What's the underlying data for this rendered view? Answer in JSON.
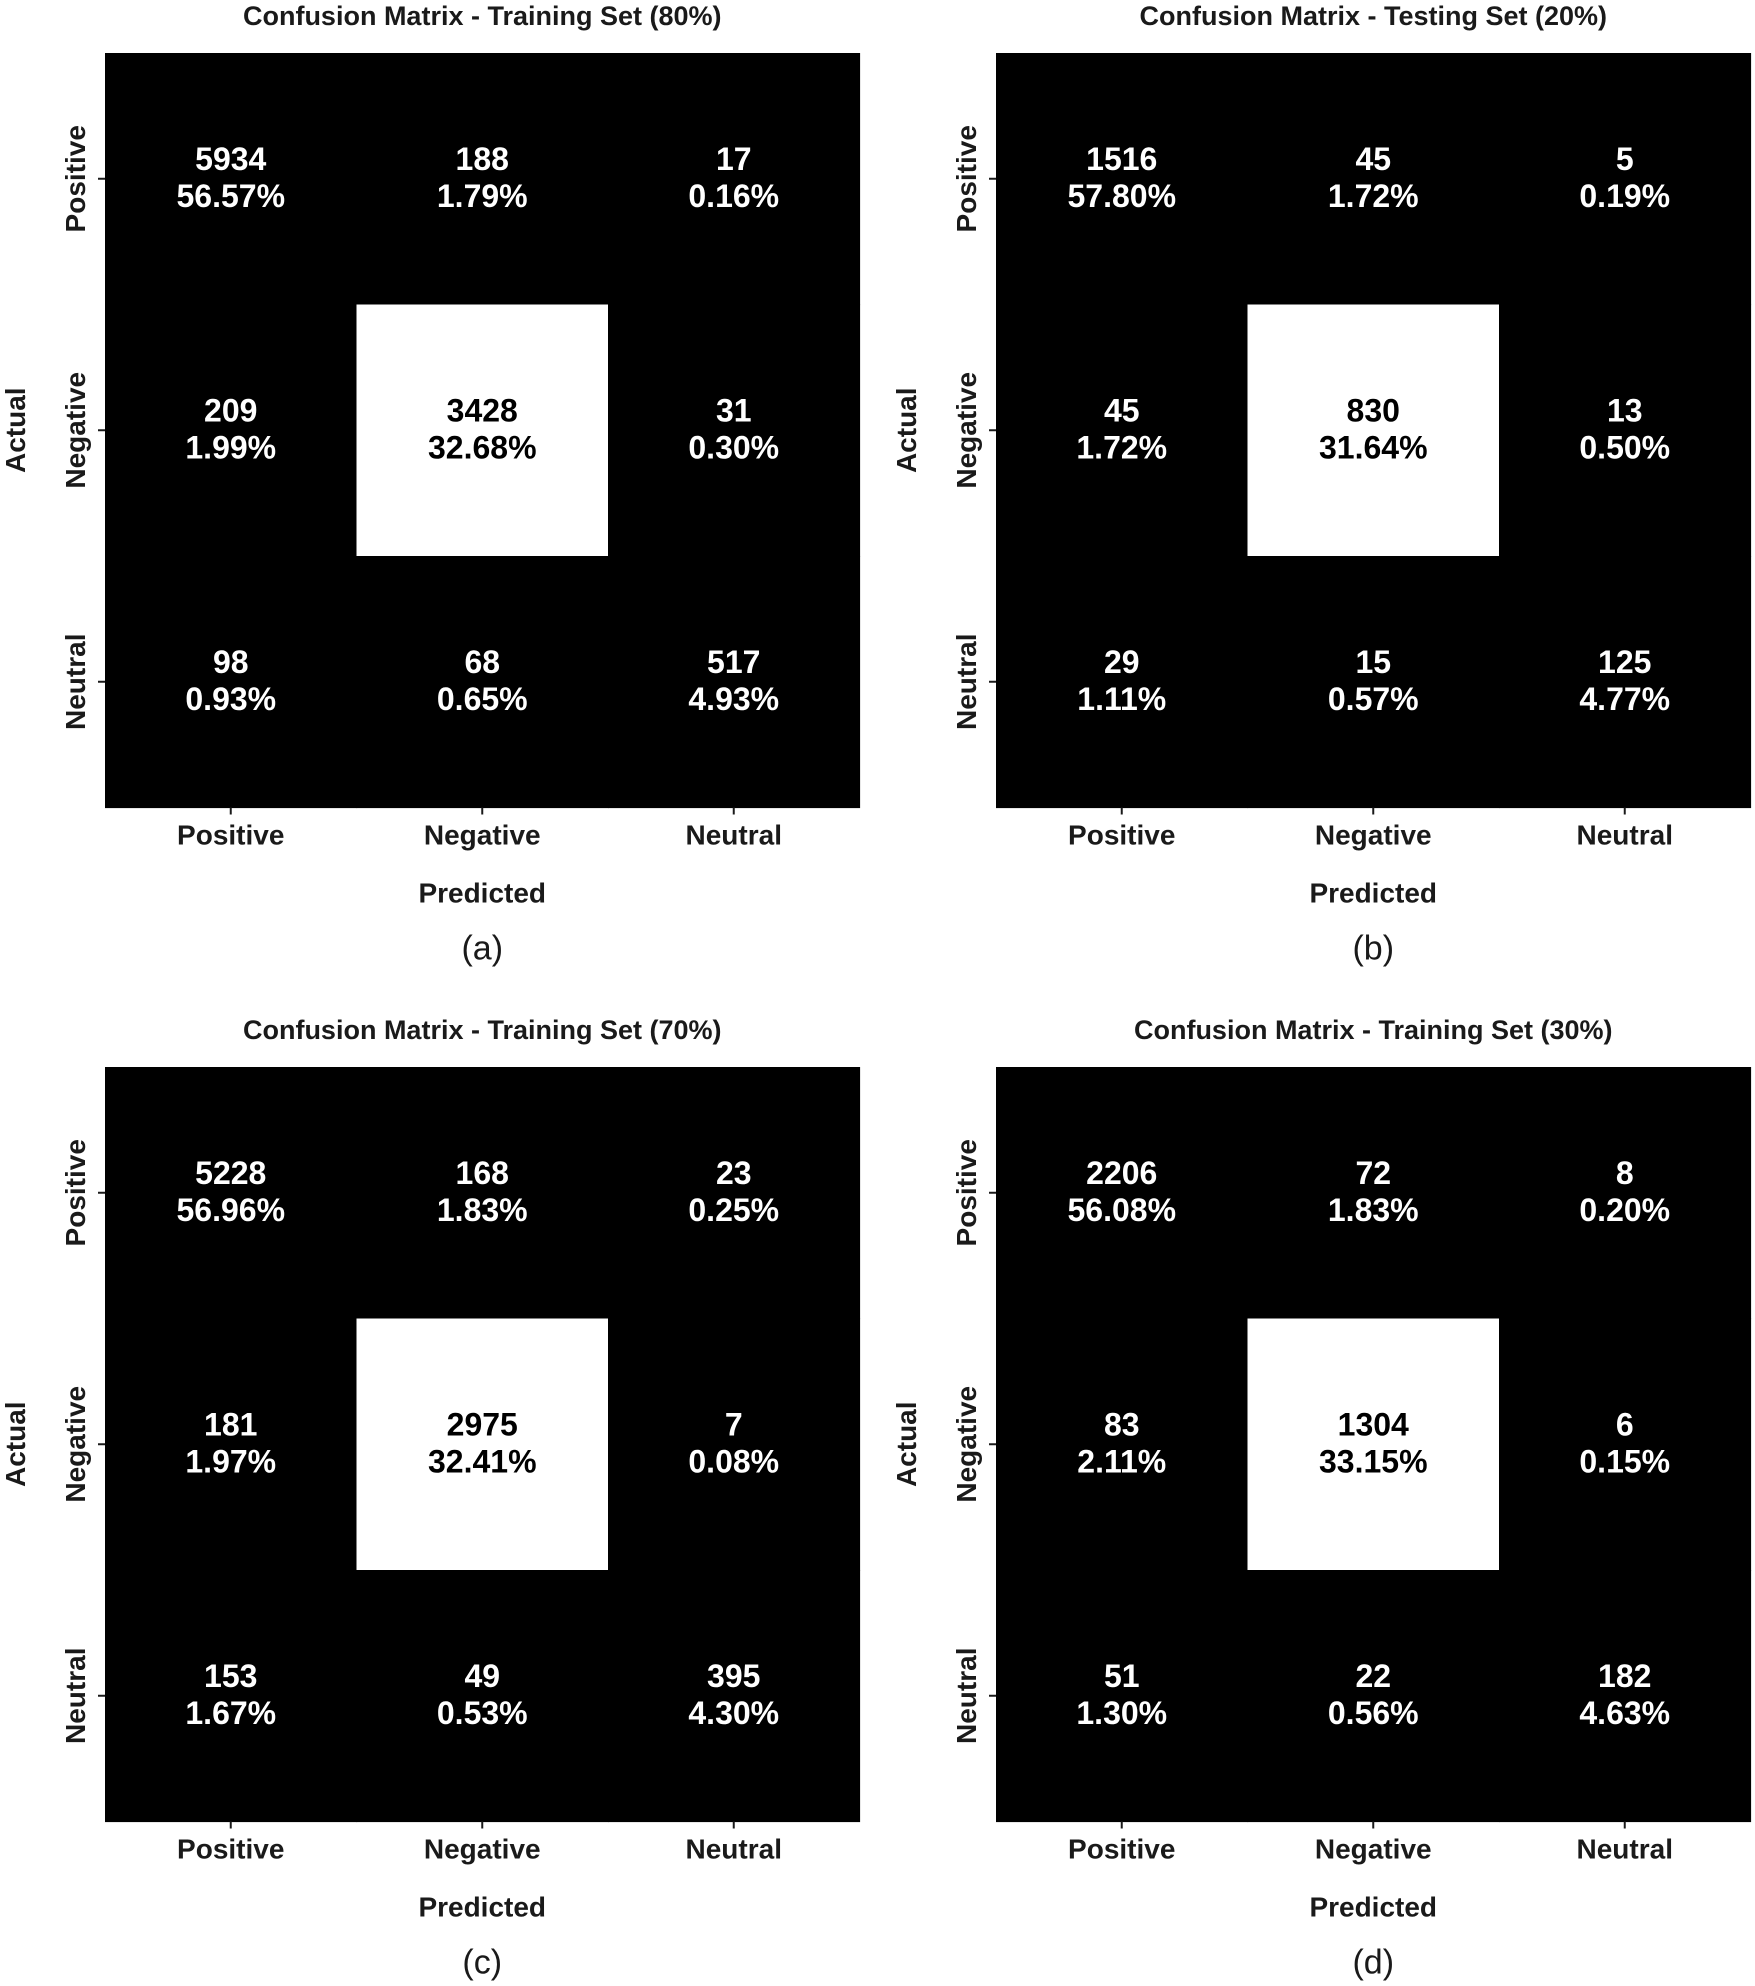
{
  "chart_data": [
    {
      "type": "heatmap",
      "title": "Confusion Matrix - Training Set (80%)",
      "caption": "(a)",
      "xlabel": "Predicted",
      "ylabel": "Actual",
      "x_categories": [
        "Positive",
        "Negative",
        "Neutral"
      ],
      "y_categories": [
        "Positive",
        "Negative",
        "Neutral"
      ],
      "counts": [
        [
          5934,
          188,
          17
        ],
        [
          209,
          3428,
          31
        ],
        [
          98,
          68,
          517
        ]
      ],
      "percents": [
        [
          "56.57%",
          "1.79%",
          "0.16%"
        ],
        [
          "1.99%",
          "32.68%",
          "0.30%"
        ],
        [
          "0.93%",
          "0.65%",
          "4.93%"
        ]
      ],
      "highlighted_cell": [
        1,
        1
      ]
    },
    {
      "type": "heatmap",
      "title": "Confusion Matrix - Testing Set (20%)",
      "caption": "(b)",
      "xlabel": "Predicted",
      "ylabel": "Actual",
      "x_categories": [
        "Positive",
        "Negative",
        "Neutral"
      ],
      "y_categories": [
        "Positive",
        "Negative",
        "Neutral"
      ],
      "counts": [
        [
          1516,
          45,
          5
        ],
        [
          45,
          830,
          13
        ],
        [
          29,
          15,
          125
        ]
      ],
      "percents": [
        [
          "57.80%",
          "1.72%",
          "0.19%"
        ],
        [
          "1.72%",
          "31.64%",
          "0.50%"
        ],
        [
          "1.11%",
          "0.57%",
          "4.77%"
        ]
      ],
      "highlighted_cell": [
        1,
        1
      ]
    },
    {
      "type": "heatmap",
      "title": "Confusion Matrix - Training Set (70%)",
      "caption": "(c)",
      "xlabel": "Predicted",
      "ylabel": "Actual",
      "x_categories": [
        "Positive",
        "Negative",
        "Neutral"
      ],
      "y_categories": [
        "Positive",
        "Negative",
        "Neutral"
      ],
      "counts": [
        [
          5228,
          168,
          23
        ],
        [
          181,
          2975,
          7
        ],
        [
          153,
          49,
          395
        ]
      ],
      "percents": [
        [
          "56.96%",
          "1.83%",
          "0.25%"
        ],
        [
          "1.97%",
          "32.41%",
          "0.08%"
        ],
        [
          "1.67%",
          "0.53%",
          "4.30%"
        ]
      ],
      "highlighted_cell": [
        1,
        1
      ]
    },
    {
      "type": "heatmap",
      "title": "Confusion Matrix - Training Set (30%)",
      "caption": "(d)",
      "xlabel": "Predicted",
      "ylabel": "Actual",
      "x_categories": [
        "Positive",
        "Negative",
        "Neutral"
      ],
      "y_categories": [
        "Positive",
        "Negative",
        "Neutral"
      ],
      "counts": [
        [
          2206,
          72,
          8
        ],
        [
          83,
          1304,
          6
        ],
        [
          51,
          22,
          182
        ]
      ],
      "percents": [
        [
          "56.08%",
          "1.83%",
          "0.20%"
        ],
        [
          "2.11%",
          "33.15%",
          "0.15%"
        ],
        [
          "1.30%",
          "0.56%",
          "4.63%"
        ]
      ],
      "highlighted_cell": [
        1,
        1
      ]
    }
  ],
  "colors": {
    "cell_dark": "#000000",
    "cell_light": "#ffffff",
    "text_on_dark": "#ffffff",
    "text_on_light": "#000000"
  }
}
